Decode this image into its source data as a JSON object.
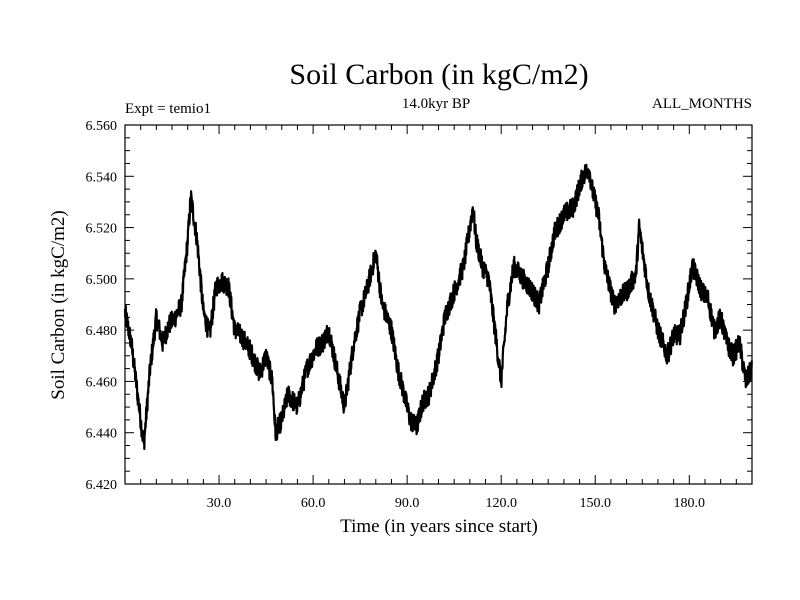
{
  "chart_data": {
    "type": "line",
    "title": "Soil Carbon (in kgC/m2)",
    "subtitle_left": "Expt = temio1",
    "subtitle_center": "14.0kyr BP",
    "subtitle_right": "ALL_MONTHS",
    "xlabel": "Time (in years since start)",
    "ylabel": "Soil Carbon (in kgC/m2)",
    "xlim": [
      0,
      200
    ],
    "ylim": [
      6.42,
      6.56
    ],
    "x_ticks": [
      30,
      60,
      90,
      120,
      150,
      180
    ],
    "x_tick_labels": [
      "30.0",
      "60.0",
      "90.0",
      "120.0",
      "150.0",
      "180.0"
    ],
    "y_ticks": [
      6.42,
      6.44,
      6.46,
      6.48,
      6.5,
      6.52,
      6.54,
      6.56
    ],
    "y_tick_labels": [
      "6.420",
      "6.440",
      "6.460",
      "6.480",
      "6.500",
      "6.520",
      "6.540",
      "6.560"
    ],
    "series": [
      {
        "name": "Soil Carbon",
        "x": [
          0,
          2,
          4,
          6,
          8,
          10,
          12,
          14,
          16,
          18,
          20,
          21,
          23,
          25,
          27,
          29,
          31,
          33,
          35,
          37,
          40,
          43,
          45,
          47,
          48,
          50,
          52,
          55,
          58,
          61,
          63,
          65,
          68,
          70,
          73,
          75,
          77,
          79,
          80,
          82,
          85,
          87,
          89,
          91,
          93,
          95,
          97,
          100,
          102,
          105,
          108,
          110,
          111,
          112,
          114,
          116,
          118,
          120,
          122,
          124,
          127,
          130,
          132,
          135,
          137,
          140,
          143,
          146,
          148,
          149,
          151,
          153,
          156,
          158,
          160,
          163,
          164,
          167,
          170,
          173,
          175,
          177,
          179,
          181,
          184,
          186,
          188,
          190,
          192,
          194,
          196,
          198,
          200
        ],
        "y": [
          6.487,
          6.475,
          6.455,
          6.435,
          6.465,
          6.485,
          6.475,
          6.482,
          6.485,
          6.49,
          6.515,
          6.532,
          6.515,
          6.487,
          6.478,
          6.497,
          6.499,
          6.497,
          6.48,
          6.478,
          6.472,
          6.463,
          6.47,
          6.46,
          6.44,
          6.445,
          6.455,
          6.45,
          6.465,
          6.473,
          6.475,
          6.48,
          6.462,
          6.45,
          6.475,
          6.487,
          6.495,
          6.505,
          6.51,
          6.49,
          6.48,
          6.465,
          6.455,
          6.445,
          6.442,
          6.452,
          6.455,
          6.47,
          6.485,
          6.495,
          6.505,
          6.52,
          6.528,
          6.515,
          6.505,
          6.5,
          6.48,
          6.46,
          6.49,
          6.505,
          6.5,
          6.495,
          6.49,
          6.505,
          6.518,
          6.525,
          6.528,
          6.54,
          6.543,
          6.535,
          6.525,
          6.505,
          6.49,
          6.493,
          6.495,
          6.502,
          6.52,
          6.495,
          6.48,
          6.47,
          6.478,
          6.478,
          6.49,
          6.505,
          6.495,
          6.492,
          6.48,
          6.485,
          6.475,
          6.47,
          6.475,
          6.46,
          6.465
        ]
      }
    ]
  }
}
